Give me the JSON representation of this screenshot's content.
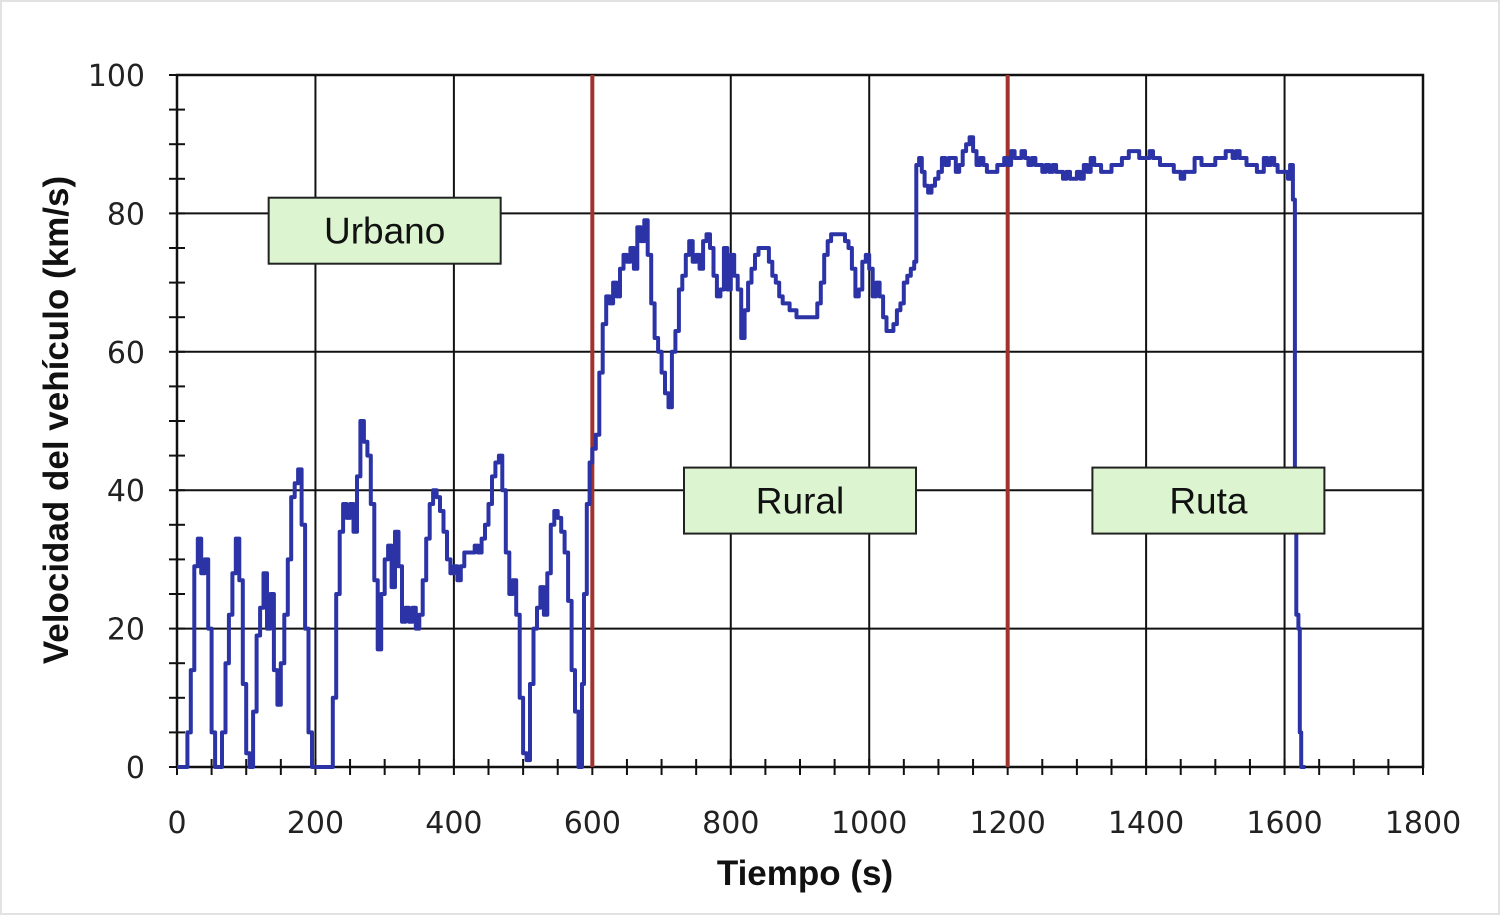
{
  "chart_data": {
    "type": "line",
    "title": "",
    "xlabel": "Tiempo (s)",
    "ylabel": "Velocidad del vehículo (km/s)",
    "xlim": [
      0,
      1800
    ],
    "ylim": [
      0,
      100
    ],
    "xticks": [
      "0",
      "200",
      "400",
      "600",
      "800",
      "1000",
      "1200",
      "1400",
      "1600",
      "1800"
    ],
    "yticks": [
      "0",
      "20",
      "40",
      "60",
      "80",
      "100"
    ],
    "grid": true,
    "line_color": "#2b33a6",
    "divider_color": "#a0332e",
    "zone_fill": "#dcf5d0",
    "dividers": [
      600,
      1200
    ],
    "zones": [
      {
        "label": "Urbano",
        "x": 300,
        "y": 77.5
      },
      {
        "label": "Rural",
        "x": 900,
        "y": 38.5
      },
      {
        "label": "Ruta",
        "x": 1490,
        "y": 38.5
      }
    ],
    "series": [
      {
        "values": [
          [
            0,
            0
          ],
          [
            10,
            0
          ],
          [
            15,
            5
          ],
          [
            20,
            14
          ],
          [
            25,
            29
          ],
          [
            30,
            33
          ],
          [
            35,
            28
          ],
          [
            40,
            30
          ],
          [
            45,
            20
          ],
          [
            50,
            5
          ],
          [
            55,
            0
          ],
          [
            60,
            0
          ],
          [
            65,
            5
          ],
          [
            70,
            15
          ],
          [
            75,
            22
          ],
          [
            80,
            28
          ],
          [
            85,
            33
          ],
          [
            90,
            27
          ],
          [
            95,
            12
          ],
          [
            100,
            2
          ],
          [
            105,
            0
          ],
          [
            110,
            8
          ],
          [
            115,
            19
          ],
          [
            120,
            23
          ],
          [
            125,
            28
          ],
          [
            130,
            20
          ],
          [
            135,
            25
          ],
          [
            140,
            14
          ],
          [
            145,
            9
          ],
          [
            150,
            15
          ],
          [
            155,
            22
          ],
          [
            160,
            30
          ],
          [
            165,
            39
          ],
          [
            170,
            41
          ],
          [
            175,
            43
          ],
          [
            180,
            35
          ],
          [
            185,
            20
          ],
          [
            190,
            5
          ],
          [
            195,
            0
          ],
          [
            200,
            0
          ],
          [
            210,
            0
          ],
          [
            220,
            0
          ],
          [
            225,
            10
          ],
          [
            230,
            25
          ],
          [
            235,
            34
          ],
          [
            240,
            38
          ],
          [
            245,
            36
          ],
          [
            250,
            38
          ],
          [
            255,
            34
          ],
          [
            260,
            42
          ],
          [
            265,
            50
          ],
          [
            270,
            47
          ],
          [
            275,
            45
          ],
          [
            280,
            38
          ],
          [
            285,
            27
          ],
          [
            290,
            17
          ],
          [
            295,
            25
          ],
          [
            300,
            30
          ],
          [
            305,
            32
          ],
          [
            310,
            26
          ],
          [
            315,
            34
          ],
          [
            320,
            29
          ],
          [
            325,
            21
          ],
          [
            330,
            23
          ],
          [
            335,
            21
          ],
          [
            340,
            23
          ],
          [
            345,
            20
          ],
          [
            350,
            22
          ],
          [
            355,
            27
          ],
          [
            360,
            33
          ],
          [
            365,
            38
          ],
          [
            370,
            40
          ],
          [
            375,
            39
          ],
          [
            380,
            37
          ],
          [
            385,
            34
          ],
          [
            390,
            30
          ],
          [
            395,
            28
          ],
          [
            400,
            29
          ],
          [
            405,
            27
          ],
          [
            410,
            29
          ],
          [
            415,
            31
          ],
          [
            420,
            31
          ],
          [
            425,
            31
          ],
          [
            430,
            32
          ],
          [
            435,
            31
          ],
          [
            440,
            33
          ],
          [
            445,
            35
          ],
          [
            450,
            38
          ],
          [
            455,
            42
          ],
          [
            460,
            44
          ],
          [
            465,
            45
          ],
          [
            470,
            40
          ],
          [
            475,
            31
          ],
          [
            480,
            25
          ],
          [
            485,
            27
          ],
          [
            490,
            22
          ],
          [
            495,
            10
          ],
          [
            500,
            2
          ],
          [
            505,
            1
          ],
          [
            510,
            12
          ],
          [
            515,
            20
          ],
          [
            520,
            23
          ],
          [
            525,
            26
          ],
          [
            530,
            22
          ],
          [
            535,
            28
          ],
          [
            540,
            35
          ],
          [
            545,
            37
          ],
          [
            550,
            36
          ],
          [
            555,
            34
          ],
          [
            560,
            31
          ],
          [
            565,
            24
          ],
          [
            570,
            14
          ],
          [
            575,
            8
          ],
          [
            580,
            0
          ],
          [
            585,
            12
          ],
          [
            588,
            25
          ],
          [
            592,
            38
          ],
          [
            596,
            44
          ],
          [
            600,
            46
          ],
          [
            605,
            48
          ],
          [
            610,
            57
          ],
          [
            615,
            64
          ],
          [
            620,
            68
          ],
          [
            625,
            67
          ],
          [
            630,
            70
          ],
          [
            635,
            68
          ],
          [
            640,
            72
          ],
          [
            645,
            74
          ],
          [
            650,
            73
          ],
          [
            655,
            75
          ],
          [
            660,
            72
          ],
          [
            665,
            78
          ],
          [
            670,
            76
          ],
          [
            675,
            79
          ],
          [
            680,
            74
          ],
          [
            685,
            67
          ],
          [
            690,
            62
          ],
          [
            695,
            60
          ],
          [
            700,
            57
          ],
          [
            705,
            54
          ],
          [
            710,
            52
          ],
          [
            715,
            60
          ],
          [
            720,
            63
          ],
          [
            725,
            69
          ],
          [
            730,
            71
          ],
          [
            735,
            74
          ],
          [
            740,
            76
          ],
          [
            745,
            73
          ],
          [
            750,
            74
          ],
          [
            755,
            72
          ],
          [
            760,
            76
          ],
          [
            765,
            77
          ],
          [
            770,
            75
          ],
          [
            775,
            71
          ],
          [
            780,
            68
          ],
          [
            785,
            69
          ],
          [
            790,
            75
          ],
          [
            795,
            69
          ],
          [
            800,
            74
          ],
          [
            805,
            71
          ],
          [
            810,
            69
          ],
          [
            815,
            62
          ],
          [
            820,
            66
          ],
          [
            825,
            70
          ],
          [
            830,
            72
          ],
          [
            835,
            74
          ],
          [
            840,
            75
          ],
          [
            845,
            75
          ],
          [
            850,
            75
          ],
          [
            855,
            73
          ],
          [
            860,
            71
          ],
          [
            865,
            70
          ],
          [
            870,
            68
          ],
          [
            875,
            67
          ],
          [
            880,
            67
          ],
          [
            885,
            66
          ],
          [
            890,
            66
          ],
          [
            895,
            65
          ],
          [
            900,
            65
          ],
          [
            905,
            65
          ],
          [
            910,
            65
          ],
          [
            915,
            65
          ],
          [
            920,
            65
          ],
          [
            925,
            67
          ],
          [
            930,
            70
          ],
          [
            935,
            74
          ],
          [
            940,
            76
          ],
          [
            945,
            77
          ],
          [
            950,
            77
          ],
          [
            955,
            77
          ],
          [
            960,
            77
          ],
          [
            965,
            76
          ],
          [
            970,
            75
          ],
          [
            975,
            72
          ],
          [
            980,
            68
          ],
          [
            985,
            69
          ],
          [
            990,
            73
          ],
          [
            995,
            74
          ],
          [
            1000,
            72
          ],
          [
            1005,
            68
          ],
          [
            1010,
            70
          ],
          [
            1015,
            68
          ],
          [
            1020,
            65
          ],
          [
            1025,
            63
          ],
          [
            1030,
            63
          ],
          [
            1035,
            64
          ],
          [
            1040,
            66
          ],
          [
            1045,
            67
          ],
          [
            1050,
            70
          ],
          [
            1055,
            71
          ],
          [
            1060,
            72
          ],
          [
            1065,
            73
          ],
          [
            1068,
            87
          ],
          [
            1072,
            88
          ],
          [
            1076,
            86
          ],
          [
            1080,
            84
          ],
          [
            1085,
            83
          ],
          [
            1090,
            84
          ],
          [
            1095,
            85
          ],
          [
            1100,
            86
          ],
          [
            1105,
            88
          ],
          [
            1110,
            87
          ],
          [
            1115,
            88
          ],
          [
            1120,
            88
          ],
          [
            1125,
            86
          ],
          [
            1130,
            87
          ],
          [
            1135,
            89
          ],
          [
            1140,
            90
          ],
          [
            1145,
            91
          ],
          [
            1150,
            89
          ],
          [
            1155,
            87
          ],
          [
            1160,
            88
          ],
          [
            1165,
            87
          ],
          [
            1170,
            86
          ],
          [
            1175,
            86
          ],
          [
            1180,
            86
          ],
          [
            1185,
            87
          ],
          [
            1190,
            87
          ],
          [
            1195,
            88
          ],
          [
            1200,
            87
          ],
          [
            1205,
            89
          ],
          [
            1210,
            88
          ],
          [
            1215,
            88
          ],
          [
            1220,
            89
          ],
          [
            1225,
            88
          ],
          [
            1230,
            87
          ],
          [
            1235,
            88
          ],
          [
            1240,
            87
          ],
          [
            1245,
            87
          ],
          [
            1250,
            86
          ],
          [
            1255,
            87
          ],
          [
            1260,
            86
          ],
          [
            1265,
            87
          ],
          [
            1270,
            86
          ],
          [
            1275,
            86
          ],
          [
            1280,
            85
          ],
          [
            1285,
            86
          ],
          [
            1290,
            85
          ],
          [
            1295,
            85
          ],
          [
            1300,
            86
          ],
          [
            1305,
            85
          ],
          [
            1310,
            87
          ],
          [
            1315,
            86
          ],
          [
            1320,
            88
          ],
          [
            1325,
            87
          ],
          [
            1330,
            87
          ],
          [
            1335,
            86
          ],
          [
            1340,
            86
          ],
          [
            1345,
            86
          ],
          [
            1350,
            87
          ],
          [
            1355,
            87
          ],
          [
            1360,
            87
          ],
          [
            1365,
            88
          ],
          [
            1370,
            88
          ],
          [
            1375,
            89
          ],
          [
            1380,
            89
          ],
          [
            1385,
            89
          ],
          [
            1390,
            88
          ],
          [
            1395,
            88
          ],
          [
            1400,
            88
          ],
          [
            1405,
            89
          ],
          [
            1410,
            88
          ],
          [
            1415,
            88
          ],
          [
            1420,
            87
          ],
          [
            1425,
            87
          ],
          [
            1430,
            87
          ],
          [
            1435,
            87
          ],
          [
            1440,
            86
          ],
          [
            1445,
            86
          ],
          [
            1450,
            85
          ],
          [
            1455,
            86
          ],
          [
            1460,
            86
          ],
          [
            1465,
            86
          ],
          [
            1470,
            88
          ],
          [
            1475,
            88
          ],
          [
            1480,
            87
          ],
          [
            1485,
            87
          ],
          [
            1490,
            87
          ],
          [
            1495,
            87
          ],
          [
            1500,
            88
          ],
          [
            1505,
            88
          ],
          [
            1510,
            88
          ],
          [
            1515,
            89
          ],
          [
            1520,
            89
          ],
          [
            1525,
            88
          ],
          [
            1530,
            89
          ],
          [
            1535,
            88
          ],
          [
            1540,
            88
          ],
          [
            1545,
            87
          ],
          [
            1550,
            87
          ],
          [
            1555,
            87
          ],
          [
            1560,
            86
          ],
          [
            1565,
            86
          ],
          [
            1570,
            88
          ],
          [
            1575,
            87
          ],
          [
            1580,
            88
          ],
          [
            1585,
            87
          ],
          [
            1590,
            86
          ],
          [
            1595,
            86
          ],
          [
            1600,
            86
          ],
          [
            1605,
            85
          ],
          [
            1608,
            87
          ],
          [
            1612,
            82
          ],
          [
            1615,
            40
          ],
          [
            1617,
            22
          ],
          [
            1620,
            20
          ],
          [
            1622,
            5
          ],
          [
            1624,
            0
          ],
          [
            1630,
            0
          ]
        ]
      }
    ]
  }
}
